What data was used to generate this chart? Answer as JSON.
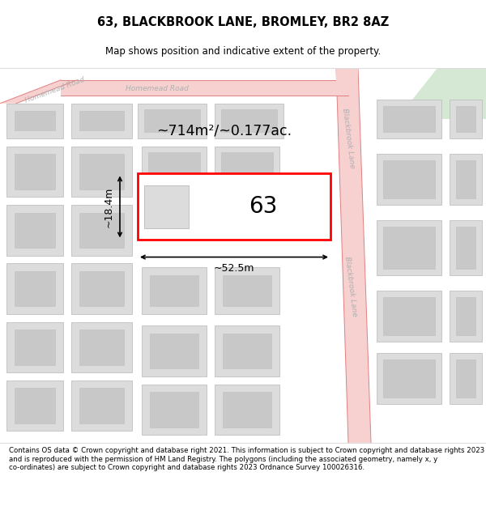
{
  "title": "63, BLACKBROOK LANE, BROMLEY, BR2 8AZ",
  "subtitle": "Map shows position and indicative extent of the property.",
  "footer": "Contains OS data © Crown copyright and database right 2021. This information is subject to Crown copyright and database rights 2023 and is reproduced with the permission of HM Land Registry. The polygons (including the associated geometry, namely x, y co-ordinates) are subject to Crown copyright and database rights 2023 Ordnance Survey 100026316.",
  "area_label": "~714m²/~0.177ac.",
  "width_label": "~52.5m",
  "height_label": "~18.4m",
  "number_label": "63",
  "map_bg": "#ffffff",
  "road_fill": "#f7d0d0",
  "road_edge": "#e08080",
  "block_fill": "#dcdcdc",
  "block_edge": "#c0c0c0",
  "highlight_color": "#ff0000",
  "green_fill": "#d4e8d4",
  "road_label_color": "#b0b0b0",
  "title_fontsize": 10.5,
  "subtitle_fontsize": 8.5,
  "footer_fontsize": 6.2
}
